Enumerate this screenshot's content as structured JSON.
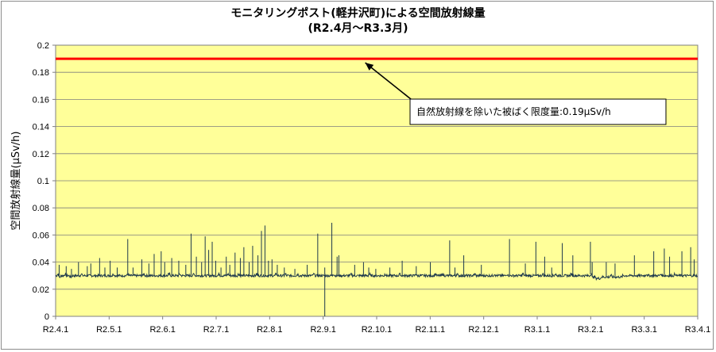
{
  "chart_data": {
    "type": "line",
    "title": "モニタリングポスト(軽井沢町)による空間放射線量",
    "subtitle": "(R2.4月～R3.3月)",
    "ylabel": "空間放射線量(μSv/h)",
    "xlabel": "",
    "ylim": [
      0,
      0.2
    ],
    "yticks": [
      "0",
      "0.02",
      "0.04",
      "0.06",
      "0.08",
      "0.1",
      "0.12",
      "0.14",
      "0.16",
      "0.18",
      "0.2"
    ],
    "x_tick_labels": [
      "R2.4.1",
      "R2.5.1",
      "R2.6.1",
      "R2.7.1",
      "R2.8.1",
      "R2.9.1",
      "R2.10.1",
      "R2.11.1",
      "R2.12.1",
      "R3.1.1",
      "R3.2.1",
      "R3.3.1",
      "R3.4.1"
    ],
    "grid": true,
    "series": [
      {
        "values": [
          0.03,
          0.031,
          0.029,
          0.03,
          0.03,
          0.031,
          0.03,
          0.03,
          0.029,
          0.03,
          0.03,
          0.03,
          0.03,
          0.03,
          0.031,
          0.03,
          0.03,
          0.03,
          0.03,
          0.03,
          0.03,
          0.03,
          0.03,
          0.03,
          0.03,
          0.03,
          0.03,
          0.03,
          0.03,
          0.03,
          0.03,
          0.03,
          0.031,
          0.03,
          0.03,
          0.03,
          0.03,
          0.03,
          0.03,
          0.03,
          0.031,
          0.03,
          0.03,
          0.03,
          0.03,
          0.03,
          0.03,
          0.03,
          0.03,
          0.031,
          0.03,
          0.03,
          0.03,
          0.03,
          0.03,
          0.03,
          0.03,
          0.03,
          0.03,
          0.03,
          0.03,
          0.03,
          0.03,
          0.031,
          0.03,
          0.03,
          0.03,
          0.03,
          0.03,
          0.031,
          0.03,
          0.03,
          0.03,
          0.03,
          0.03,
          0.03,
          0.03,
          0.031,
          0.03,
          0.03,
          0.03,
          0.03,
          0.03,
          0.03,
          0.03,
          0.03,
          0.03,
          0.03,
          0.03,
          0.03,
          0.03,
          0.031,
          0.03,
          0.03,
          0.03,
          0.03,
          0.031,
          0.03,
          0.03,
          0.03,
          0.03,
          0.03,
          0.031,
          0.03,
          0.03,
          0.03,
          0.03,
          0.03,
          0.03,
          0.03,
          0.03,
          0.03,
          0.031,
          0.03,
          0.03,
          0.03,
          0.03,
          0.03,
          0.03,
          0.03,
          0.03,
          0.03,
          0.03,
          0.031,
          0.03,
          0.03,
          0.03,
          0.03,
          0.031,
          0.03,
          0.03,
          0.03,
          0.03,
          0.03,
          0.03,
          0.031,
          0.03,
          0.03,
          0.03,
          0.03,
          0.03,
          0.03,
          0.03,
          0.03,
          0.031,
          0.03,
          0.03,
          0.03,
          0.03,
          0.03,
          0.03,
          0.03,
          0.03,
          0.03,
          0.03,
          0.031,
          0.03,
          0.03,
          0.03,
          0.03,
          0.03,
          0.03,
          0.03,
          0.03,
          0.03,
          0.031,
          0.03,
          0.03,
          0.03,
          0.03,
          0.03,
          0.03,
          0.03,
          0.03,
          0.03,
          0.031,
          0.03,
          0.03,
          0.03,
          0.03,
          0.03,
          0.03,
          0.03,
          0.03,
          0.031,
          0.03,
          0.03,
          0.03,
          0.03,
          0.03,
          0.03,
          0.03,
          0.031,
          0.03,
          0.03,
          0.03,
          0.03,
          0.03,
          0.03,
          0.03,
          0.03,
          0.031,
          0.03,
          0.03,
          0.03,
          0.03,
          0.03,
          0.03,
          0.03,
          0.03,
          0.03,
          0.03,
          0.031,
          0.03,
          0.03,
          0.03,
          0.031,
          0.03,
          0.03,
          0.03,
          0.03,
          0.03,
          0.03,
          0.03,
          0.031,
          0.03,
          0.03,
          0.03,
          0.03,
          0.03,
          0.03,
          0.03,
          0.03,
          0.03,
          0.031,
          0.03,
          0.03,
          0.03,
          0.03,
          0.03,
          0.03,
          0.03,
          0.03,
          0.03,
          0.03,
          0.031,
          0.03,
          0.03,
          0.03,
          0.03,
          0.03,
          0.03,
          0.031,
          0.03,
          0.03,
          0.03,
          0.03,
          0.03,
          0.03,
          0.03,
          0.03,
          0.031,
          0.03,
          0.03,
          0.03,
          0.03,
          0.03,
          0.03,
          0.03,
          0.03,
          0.03,
          0.03,
          0.031,
          0.03,
          0.03,
          0.03,
          0.03,
          0.03,
          0.03,
          0.031,
          0.03,
          0.03,
          0.03,
          0.03,
          0.03,
          0.03,
          0.03,
          0.03,
          0.031,
          0.03,
          0.03,
          0.03,
          0.03,
          0.03,
          0.03,
          0.03,
          0.03,
          0.03,
          0.03,
          0.031,
          0.029,
          0.029,
          0.028,
          0.028,
          0.028,
          0.029,
          0.029,
          0.029,
          0.029,
          0.029,
          0.03,
          0.029,
          0.029,
          0.029,
          0.029,
          0.029,
          0.029,
          0.03,
          0.03,
          0.03,
          0.03,
          0.03,
          0.03,
          0.03,
          0.03,
          0.03,
          0.03,
          0.03,
          0.03,
          0.03,
          0.031,
          0.03,
          0.03,
          0.03,
          0.03,
          0.03,
          0.03,
          0.03,
          0.031,
          0.03,
          0.03,
          0.03,
          0.03,
          0.03,
          0.03,
          0.03,
          0.031,
          0.03,
          0.03,
          0.03,
          0.03,
          0.03,
          0.03,
          0.03,
          0.03,
          0.03,
          0.03,
          0.03,
          0.03
        ],
        "spikes": [
          {
            "day": 2,
            "value": 0.038
          },
          {
            "day": 6,
            "value": 0.037
          },
          {
            "day": 9,
            "value": 0.035
          },
          {
            "day": 13,
            "value": 0.04
          },
          {
            "day": 18,
            "value": 0.037
          },
          {
            "day": 20,
            "value": 0.039
          },
          {
            "day": 25,
            "value": 0.043
          },
          {
            "day": 28,
            "value": 0.036
          },
          {
            "day": 31,
            "value": 0.041
          },
          {
            "day": 35,
            "value": 0.036
          },
          {
            "day": 41,
            "value": 0.057
          },
          {
            "day": 44,
            "value": 0.036
          },
          {
            "day": 49,
            "value": 0.042
          },
          {
            "day": 53,
            "value": 0.039
          },
          {
            "day": 56,
            "value": 0.046
          },
          {
            "day": 60,
            "value": 0.048
          },
          {
            "day": 62,
            "value": 0.04
          },
          {
            "day": 66,
            "value": 0.043
          },
          {
            "day": 70,
            "value": 0.041
          },
          {
            "day": 74,
            "value": 0.038
          },
          {
            "day": 77,
            "value": 0.061
          },
          {
            "day": 80,
            "value": 0.044
          },
          {
            "day": 83,
            "value": 0.04
          },
          {
            "day": 85,
            "value": 0.059
          },
          {
            "day": 87,
            "value": 0.049
          },
          {
            "day": 89,
            "value": 0.055
          },
          {
            "day": 91,
            "value": 0.041
          },
          {
            "day": 94,
            "value": 0.036
          },
          {
            "day": 97,
            "value": 0.044
          },
          {
            "day": 99,
            "value": 0.038
          },
          {
            "day": 102,
            "value": 0.047
          },
          {
            "day": 105,
            "value": 0.043
          },
          {
            "day": 107,
            "value": 0.051
          },
          {
            "day": 110,
            "value": 0.04
          },
          {
            "day": 112,
            "value": 0.052
          },
          {
            "day": 115,
            "value": 0.045
          },
          {
            "day": 117,
            "value": 0.063
          },
          {
            "day": 119,
            "value": 0.067
          },
          {
            "day": 121,
            "value": 0.041
          },
          {
            "day": 123,
            "value": 0.042
          },
          {
            "day": 126,
            "value": 0.038
          },
          {
            "day": 130,
            "value": 0.036
          },
          {
            "day": 136,
            "value": 0.035
          },
          {
            "day": 143,
            "value": 0.038
          },
          {
            "day": 149,
            "value": 0.061
          },
          {
            "day": 153,
            "value": 0.036
          },
          {
            "day": 157,
            "value": 0.069
          },
          {
            "day": 160,
            "value": 0.044
          },
          {
            "day": 161,
            "value": 0.045
          },
          {
            "day": 170,
            "value": 0.038
          },
          {
            "day": 175,
            "value": 0.04
          },
          {
            "day": 178,
            "value": 0.036
          },
          {
            "day": 182,
            "value": 0.035
          },
          {
            "day": 190,
            "value": 0.036
          },
          {
            "day": 197,
            "value": 0.041
          },
          {
            "day": 205,
            "value": 0.037
          },
          {
            "day": 213,
            "value": 0.04
          },
          {
            "day": 224,
            "value": 0.056
          },
          {
            "day": 227,
            "value": 0.036
          },
          {
            "day": 232,
            "value": 0.045
          },
          {
            "day": 242,
            "value": 0.038
          },
          {
            "day": 258,
            "value": 0.057
          },
          {
            "day": 267,
            "value": 0.039
          },
          {
            "day": 273,
            "value": 0.055
          },
          {
            "day": 278,
            "value": 0.044
          },
          {
            "day": 282,
            "value": 0.036
          },
          {
            "day": 288,
            "value": 0.054
          },
          {
            "day": 294,
            "value": 0.045
          },
          {
            "day": 304,
            "value": 0.055
          },
          {
            "day": 305,
            "value": 0.04
          },
          {
            "day": 313,
            "value": 0.04
          },
          {
            "day": 318,
            "value": 0.039
          },
          {
            "day": 329,
            "value": 0.045
          },
          {
            "day": 340,
            "value": 0.048
          },
          {
            "day": 346,
            "value": 0.05
          },
          {
            "day": 349,
            "value": 0.044
          },
          {
            "day": 356,
            "value": 0.048
          },
          {
            "day": 361,
            "value": 0.051
          },
          {
            "day": 363,
            "value": 0.042
          }
        ],
        "dips": [
          {
            "day": 153,
            "value": 0.0
          }
        ]
      }
    ],
    "reference_line": {
      "value": 0.19,
      "color": "#ff0000"
    },
    "annotation": {
      "text": "自然放射線を除いた被ばく限度量:0.19μSv/h",
      "points_to_day": 176,
      "points_to_value": 0.19
    },
    "days_total": 365,
    "colors": {
      "plot_background": "#ffff99",
      "series": "#1f3a4d",
      "grid": "#7f7f7f",
      "reference": "#ff0000"
    }
  }
}
